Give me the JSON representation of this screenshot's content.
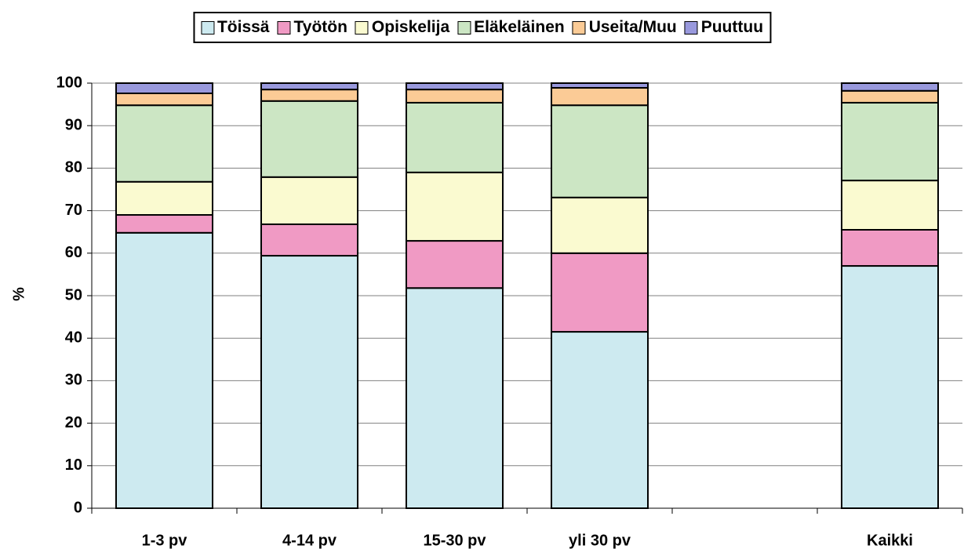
{
  "chart_data": {
    "type": "stacked_bar",
    "categories": [
      "1-3 pv",
      "4-14 pv",
      "15-30 pv",
      "yli 30 pv",
      null,
      "Kaikki"
    ],
    "series": [
      {
        "name": "Töissä",
        "color": "#cdeaf0",
        "values": [
          64.8,
          59.4,
          51.8,
          41.5,
          null,
          57.0
        ]
      },
      {
        "name": "Työtön",
        "color": "#f09ac4",
        "values": [
          4.2,
          7.4,
          11.1,
          18.5,
          null,
          8.5
        ]
      },
      {
        "name": "Opiskelija",
        "color": "#fafad0",
        "values": [
          7.8,
          11.1,
          16.1,
          13.1,
          null,
          11.6
        ]
      },
      {
        "name": "Eläkeläinen",
        "color": "#cce6c4",
        "values": [
          18.0,
          17.9,
          16.4,
          21.7,
          null,
          18.3
        ]
      },
      {
        "name": "Useita/Muu",
        "color": "#fbcb96",
        "values": [
          2.8,
          2.7,
          3.1,
          4.1,
          null,
          2.8
        ]
      },
      {
        "name": "Puuttuu",
        "color": "#9999dd",
        "values": [
          2.4,
          1.5,
          1.5,
          1.1,
          null,
          1.8
        ]
      }
    ],
    "y_label": "%",
    "ylim": [
      0,
      100
    ],
    "yticks": [
      0,
      10,
      20,
      30,
      40,
      50,
      60,
      70,
      80,
      90,
      100
    ],
    "grid": true,
    "legend": "top"
  }
}
